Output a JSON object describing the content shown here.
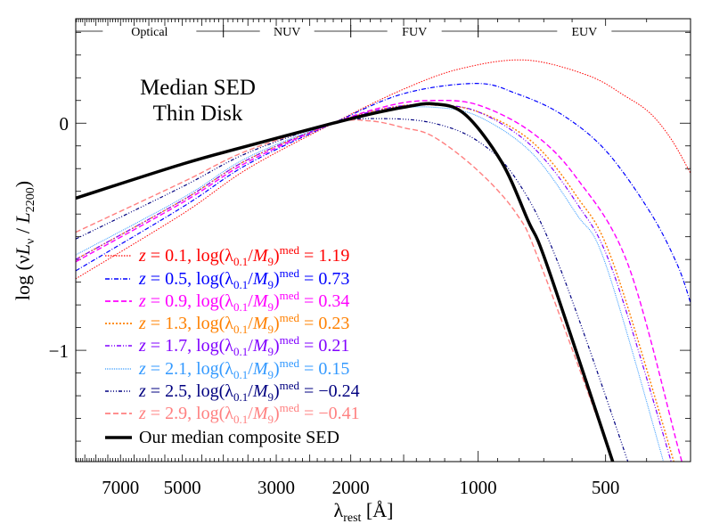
{
  "chart_data": {
    "type": "line",
    "title_lines": [
      "Median SED",
      "Thin Disk"
    ],
    "xlabel": {
      "main": "λ",
      "sub": "rest",
      "unit": " [Å]"
    },
    "ylabel": {
      "pre": "log (ν",
      "L": "L",
      "Lsub": "ν",
      "mid": " / ",
      "L2": "L",
      "L2sub": "2200",
      "post": ")"
    },
    "x_scale": "log",
    "x_reversed": true,
    "xlim": [
      8930,
      315
    ],
    "ylim": [
      -1.49,
      0.46
    ],
    "x_tick_labels": [
      "7000",
      "5000",
      "3000",
      "2000",
      "1000",
      "500"
    ],
    "x_tick_values": [
      7000,
      5000,
      3000,
      2000,
      1000,
      500
    ],
    "y_tick_labels": [
      "0",
      "−1"
    ],
    "y_tick_values": [
      0,
      -1
    ],
    "bands": [
      {
        "label": "Optical",
        "from": 8930,
        "to": 4000
      },
      {
        "label": "NUV",
        "from": 4000,
        "to": 2000
      },
      {
        "label": "FUV",
        "from": 2000,
        "to": 1000
      },
      {
        "label": "EUV",
        "from": 1000,
        "to": 315
      }
    ],
    "legend_format": {
      "z": "z",
      "eq": " = ",
      "log": "log(λ",
      "lsub": "0.1",
      "slash": "/",
      "M": "M",
      "Msub": "9",
      "close": ")",
      "sup": "med"
    },
    "legend_placement": "bottom-left",
    "series": [
      {
        "z": "0.1",
        "value": "1.19",
        "color": "#ff0000",
        "dash": "1.5,1.5",
        "width": 1,
        "points": [
          [
            8930,
            -0.685
          ],
          [
            5000,
            -0.4
          ],
          [
            3500,
            -0.2
          ],
          [
            2200,
            0
          ],
          [
            1500,
            0.15
          ],
          [
            1100,
            0.24
          ],
          [
            773,
            0.278
          ],
          [
            550,
            0.21
          ],
          [
            450,
            0.12
          ],
          [
            393,
            0.045
          ],
          [
            350,
            -0.07
          ],
          [
            315,
            -0.22
          ]
        ]
      },
      {
        "z": "0.5",
        "value": "0.73",
        "color": "#0000ff",
        "dash": "5,2,1,2",
        "width": 1.2,
        "points": [
          [
            8930,
            -0.65
          ],
          [
            5000,
            -0.37
          ],
          [
            3500,
            -0.18
          ],
          [
            2200,
            0
          ],
          [
            1500,
            0.13
          ],
          [
            1010,
            0.175
          ],
          [
            811,
            0.13
          ],
          [
            637,
            0.04
          ],
          [
            500,
            -0.12
          ],
          [
            393,
            -0.39
          ],
          [
            339,
            -0.62
          ],
          [
            315,
            -0.79
          ]
        ]
      },
      {
        "z": "0.9",
        "value": "0.34",
        "color": "#ff00ff",
        "dash": "6,3",
        "width": 1.4,
        "points": [
          [
            8930,
            -0.61
          ],
          [
            5000,
            -0.35
          ],
          [
            3500,
            -0.17
          ],
          [
            2200,
            0
          ],
          [
            1600,
            0.08
          ],
          [
            1274,
            0.1
          ],
          [
            1000,
            0.08
          ],
          [
            748,
            -0.04
          ],
          [
            586,
            -0.24
          ],
          [
            443,
            -0.62
          ],
          [
            338,
            -1.42
          ],
          [
            325,
            -1.55
          ]
        ]
      },
      {
        "z": "1.3",
        "value": "0.23",
        "color": "#ff8000",
        "dash": "2,2",
        "width": 1.4,
        "points": [
          [
            8930,
            -0.6
          ],
          [
            5000,
            -0.34
          ],
          [
            3500,
            -0.16
          ],
          [
            2200,
            0
          ],
          [
            1600,
            0.07
          ],
          [
            1274,
            0.08
          ],
          [
            1000,
            0.05
          ],
          [
            748,
            -0.08
          ],
          [
            586,
            -0.32
          ],
          [
            481,
            -0.61
          ],
          [
            345,
            -1.49
          ],
          [
            335,
            -1.6
          ]
        ]
      },
      {
        "z": "1.7",
        "value": "0.21",
        "color": "#8000ff",
        "dash": "5,2,1,2,1,2",
        "width": 1.2,
        "points": [
          [
            8930,
            -0.6
          ],
          [
            5000,
            -0.34
          ],
          [
            3500,
            -0.16
          ],
          [
            2200,
            0
          ],
          [
            1600,
            0.07
          ],
          [
            1274,
            0.08
          ],
          [
            1000,
            0.05
          ],
          [
            748,
            -0.1
          ],
          [
            586,
            -0.35
          ],
          [
            481,
            -0.65
          ],
          [
            350,
            -1.49
          ],
          [
            340,
            -1.6
          ]
        ]
      },
      {
        "z": "2.1",
        "value": "0.15",
        "color": "#3399ff",
        "dash": "1,1",
        "width": 1,
        "points": [
          [
            8930,
            -0.58
          ],
          [
            5000,
            -0.33
          ],
          [
            3500,
            -0.15
          ],
          [
            2200,
            0
          ],
          [
            1600,
            0.06
          ],
          [
            1274,
            0.07
          ],
          [
            1000,
            0.03
          ],
          [
            748,
            -0.13
          ],
          [
            586,
            -0.4
          ],
          [
            500,
            -0.62
          ],
          [
            365,
            -1.49
          ],
          [
            355,
            -1.6
          ]
        ]
      },
      {
        "z": "2.5",
        "value": "−0.24",
        "color": "#000080",
        "dash": "4,2,1,2,1,2,1,2",
        "width": 1.2,
        "points": [
          [
            8930,
            -0.51
          ],
          [
            5000,
            -0.28
          ],
          [
            3500,
            -0.13
          ],
          [
            2200,
            0
          ],
          [
            1680,
            0.02
          ],
          [
            1274,
            0.0
          ],
          [
            1000,
            -0.08
          ],
          [
            811,
            -0.25
          ],
          [
            646,
            -0.62
          ],
          [
            443,
            -1.49
          ],
          [
            430,
            -1.6
          ]
        ]
      },
      {
        "z": "2.9",
        "value": "−0.41",
        "color": "#ff8080",
        "dash": "6,3",
        "width": 1.4,
        "points": [
          [
            8930,
            -0.48
          ],
          [
            5000,
            -0.26
          ],
          [
            3500,
            -0.12
          ],
          [
            2200,
            0
          ],
          [
            1800,
            0.01
          ],
          [
            1500,
            -0.02
          ],
          [
            1274,
            -0.06
          ],
          [
            1000,
            -0.21
          ],
          [
            811,
            -0.4
          ],
          [
            713,
            -0.62
          ],
          [
            481,
            -1.49
          ],
          [
            470,
            -1.6
          ]
        ]
      }
    ],
    "composite": {
      "label": "Our median composite SED",
      "color": "#000000",
      "width": 3.5,
      "points": [
        [
          8930,
          -0.33
        ],
        [
          5000,
          -0.18
        ],
        [
          3500,
          -0.1
        ],
        [
          2200,
          0
        ],
        [
          1800,
          0.04
        ],
        [
          1500,
          0.07
        ],
        [
          1274,
          0.085
        ],
        [
          1076,
          0.04
        ],
        [
          881,
          -0.17
        ],
        [
          762,
          -0.43
        ],
        [
          686,
          -0.63
        ],
        [
          481,
          -1.49
        ],
        [
          470,
          -1.55
        ]
      ]
    }
  }
}
